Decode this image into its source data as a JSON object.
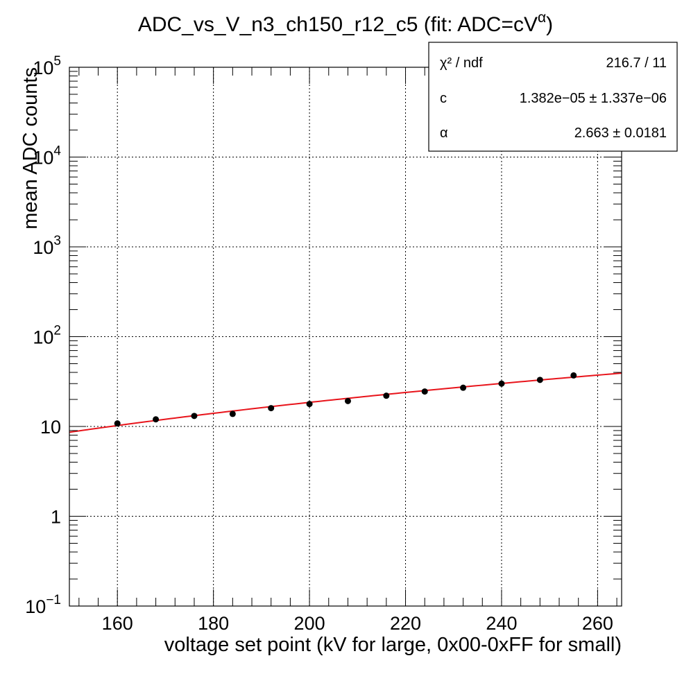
{
  "chart_data": {
    "type": "scatter",
    "title_base": "ADC_vs_V_n3_ch150_r12_c5 (fit: ADC=cV",
    "title_sup": "α",
    "title_tail": ")",
    "xlabel": "voltage set point (kV for large, 0x00-0xFF for small)",
    "ylabel": "mean ADC counts",
    "xlim": [
      150,
      265
    ],
    "ylim": [
      0.1,
      100000
    ],
    "yscale": "log",
    "grid": true,
    "x_ticks": [
      160,
      180,
      200,
      220,
      240,
      260
    ],
    "y_ticks": [
      {
        "value": 0.1,
        "base": "10",
        "exp": "−1"
      },
      {
        "value": 1,
        "base": "1",
        "exp": ""
      },
      {
        "value": 10,
        "base": "10",
        "exp": ""
      },
      {
        "value": 100,
        "base": "10",
        "exp": "2"
      },
      {
        "value": 1000,
        "base": "10",
        "exp": "3"
      },
      {
        "value": 10000,
        "base": "10",
        "exp": "4"
      },
      {
        "value": 100000,
        "base": "10",
        "exp": "5"
      }
    ],
    "series": [
      {
        "x": [
          160,
          168,
          176,
          184,
          192,
          200,
          208,
          216,
          224,
          232,
          240,
          248,
          255
        ],
        "y": [
          10.8,
          12.0,
          13.1,
          13.8,
          16.0,
          17.8,
          19.2,
          22.0,
          24.5,
          27.0,
          30.0,
          33.0,
          37.0
        ]
      }
    ],
    "fit": {
      "model": "power",
      "c": 1.382e-05,
      "alpha": 2.663,
      "x_range": [
        150,
        265
      ],
      "color": "#e8141b"
    },
    "stats": {
      "rows": [
        {
          "label": "χ² / ndf",
          "value": "216.7 / 11"
        },
        {
          "label": "c",
          "value": "1.382e−05 ± 1.337e−06"
        },
        {
          "label": "α",
          "value": "2.663 ± 0.0181"
        }
      ]
    },
    "colors": {
      "points": "#000000",
      "fit": "#e8141b",
      "grid": "#000000"
    }
  }
}
